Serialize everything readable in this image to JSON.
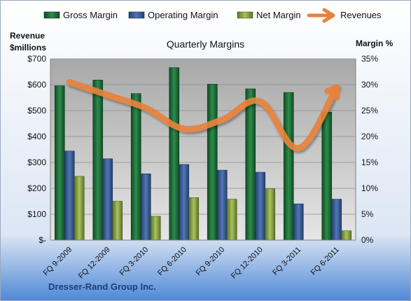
{
  "colors": {
    "gross": "#1f6b3a",
    "operating": "#3a5f98",
    "net": "#8fa84d",
    "revenues": "#e8823a",
    "plot_bg": "#bfbfbf",
    "background_top": "#ffffff",
    "background_bottom": "#4f88d6"
  },
  "legend": [
    {
      "label": "Gross Margin",
      "icon": "green-bar-icon"
    },
    {
      "label": "Operating Margin",
      "icon": "blue-bar-icon"
    },
    {
      "label": "Net Margin",
      "icon": "olive-bar-icon"
    },
    {
      "label": "Revenues",
      "icon": "orange-arrow-icon"
    }
  ],
  "footer": "Dresser-Rand Group Inc.",
  "chart_data": {
    "type": "bar",
    "title": "Quarterly Margins",
    "ylabel_left": [
      "Revenue",
      "$millions"
    ],
    "ylabel_right": "Margin %",
    "categories": [
      "FQ 9-2009",
      "FQ 12-2009",
      "FQ 3-2010",
      "FQ 6-2010",
      "FQ 9-2010",
      "FQ 12-2010",
      "FQ 3-2011",
      "FQ 6-2011"
    ],
    "y_left": {
      "min": 0,
      "max": 700,
      "step": 100,
      "ticks": [
        "$-",
        "$100",
        "$200",
        "$300",
        "$400",
        "$500",
        "$600",
        "$700"
      ]
    },
    "y_right": {
      "min": 0,
      "max": 35,
      "step": 5,
      "ticks": [
        "0%",
        "5%",
        "10%",
        "15%",
        "20%",
        "25%",
        "30%",
        "35%"
      ]
    },
    "series": [
      {
        "name": "Gross Margin",
        "axis": "right",
        "values": [
          29.8,
          30.9,
          28.3,
          33.3,
          30.1,
          29.2,
          28.5,
          24.7
        ]
      },
      {
        "name": "Operating Margin",
        "axis": "right",
        "values": [
          17.2,
          15.7,
          12.8,
          14.6,
          13.5,
          13.1,
          7.0,
          7.9
        ]
      },
      {
        "name": "Net Margin",
        "axis": "right",
        "values": [
          12.3,
          7.5,
          4.6,
          8.2,
          7.9,
          9.9,
          0.0,
          1.8
        ]
      },
      {
        "name": "Revenues",
        "axis": "left",
        "type": "line",
        "values": [
          610,
          560,
          510,
          430,
          465,
          535,
          355,
          590
        ]
      }
    ],
    "grid": true,
    "legend_position": "top"
  }
}
